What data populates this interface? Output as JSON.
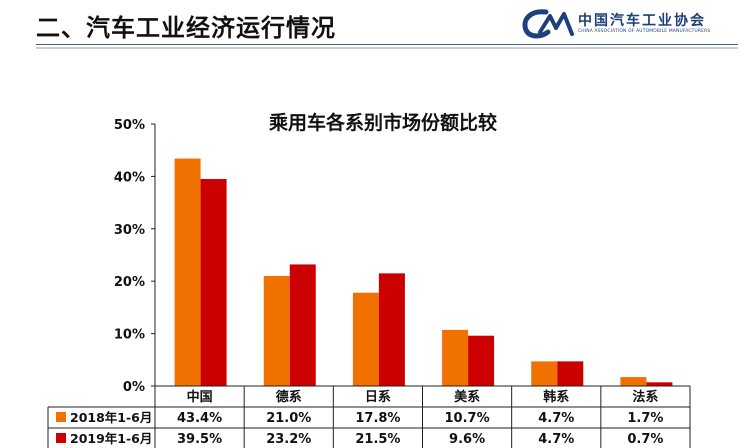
{
  "header": {
    "title": "二、汽车工业经济运行情况",
    "logo_text": "中国汽车工业协会",
    "logo_subtext": "CHINA ASSOCIATION OF AUTOMOBILE MANUFACTURERS"
  },
  "chart_data": {
    "type": "bar",
    "title": "乘用车各系别市场份额比较",
    "categories": [
      "中国",
      "德系",
      "日系",
      "美系",
      "韩系",
      "法系"
    ],
    "series": [
      {
        "name": "2018年1-6月",
        "color": "#f07000",
        "values": [
          43.4,
          21.0,
          17.8,
          10.7,
          4.7,
          1.7
        ],
        "labels": [
          "43.4%",
          "21.0%",
          "17.8%",
          "10.7%",
          "4.7%",
          "1.7%"
        ]
      },
      {
        "name": "2019年1-6月",
        "color": "#cc0000",
        "values": [
          39.5,
          23.2,
          21.5,
          9.6,
          4.7,
          0.7
        ],
        "labels": [
          "39.5%",
          "23.2%",
          "21.5%",
          "9.6%",
          "4.7%",
          "0.7%"
        ]
      }
    ],
    "ylim": [
      0,
      50
    ],
    "yticks": [
      "0%",
      "10%",
      "20%",
      "30%",
      "40%",
      "50%"
    ],
    "ytick_values": [
      0,
      10,
      20,
      30,
      40,
      50
    ],
    "legend": "data-table",
    "grid": false
  }
}
